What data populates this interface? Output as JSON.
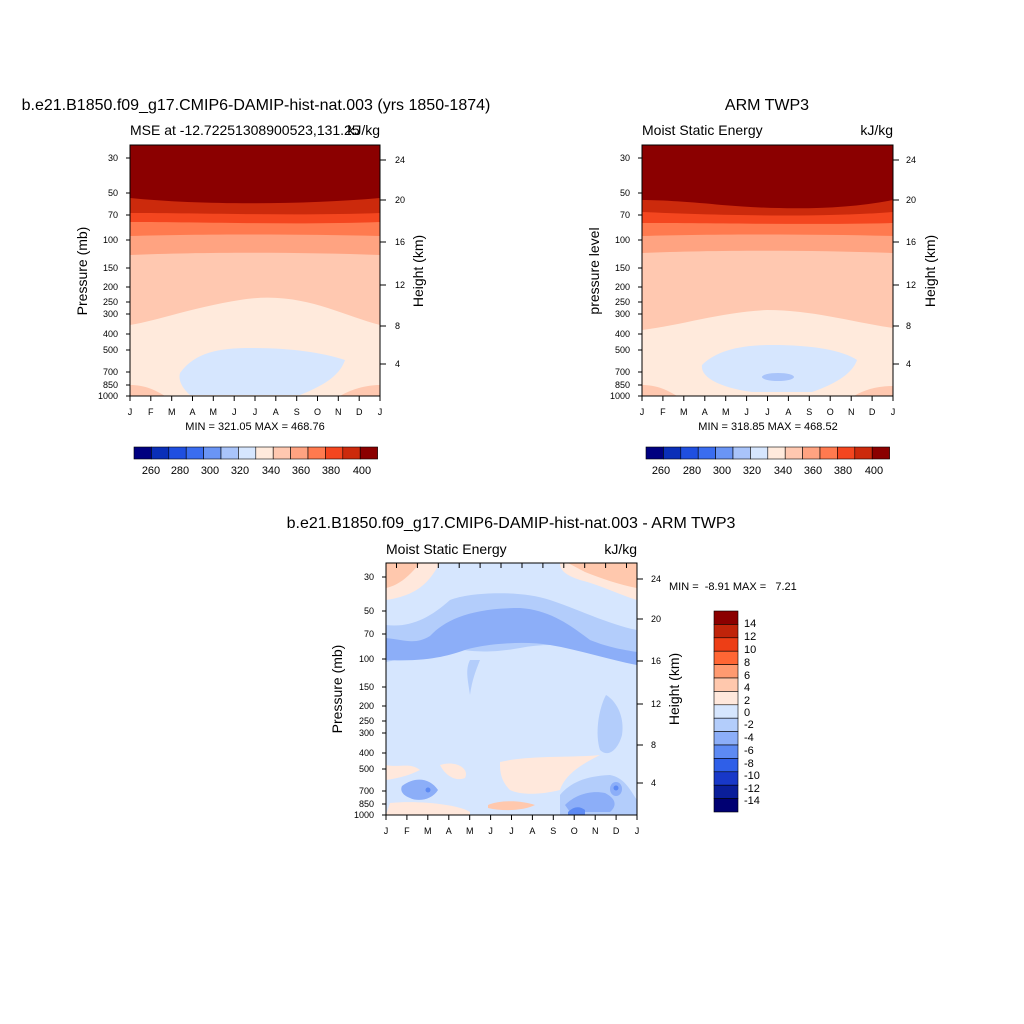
{
  "panels": [
    {
      "title": "b.e21.B1850.f09_g17.CMIP6-DAMIP-hist-nat.003 (yrs 1850-1874)",
      "subtitle_left": "MSE at -12.72251308900523,131.25",
      "subtitle_right": "kJ/kg",
      "ylabel": "Pressure (mb)",
      "y2label": "Height (km)",
      "stats": "MIN = 321.05 MAX = 468.76"
    },
    {
      "title": "ARM TWP3",
      "subtitle_left": "Moist Static Energy",
      "subtitle_right": "kJ/kg",
      "ylabel": "pressure level",
      "y2label": "Height (km)",
      "stats": "MIN = 318.85 MAX = 468.52"
    },
    {
      "title": "b.e21.B1850.f09_g17.CMIP6-DAMIP-hist-nat.003 - ARM TWP3",
      "subtitle_left": "Moist Static Energy",
      "subtitle_right": "kJ/kg",
      "ylabel": "Pressure (mb)",
      "y2label": "Height (km)",
      "stats": "MIN =  -8.91 MAX =   7.21"
    }
  ],
  "chart_data": [
    {
      "type": "heatmap",
      "title": "b.e21.B1850.f09_g17.CMIP6-DAMIP-hist-nat.003 (yrs 1850-1874)",
      "subtitle": "MSE at -12.72251308900523,131.25",
      "units": "kJ/kg",
      "xlabel": "",
      "ylabel": "Pressure (mb)",
      "y2label": "Height (km)",
      "x_ticks": [
        "J",
        "F",
        "M",
        "A",
        "M",
        "J",
        "J",
        "A",
        "S",
        "O",
        "N",
        "D",
        "J"
      ],
      "y_ticks": [
        30,
        50,
        70,
        100,
        150,
        200,
        250,
        300,
        400,
        500,
        700,
        850,
        1000
      ],
      "y2_ticks": [
        4,
        8,
        12,
        16,
        20,
        24
      ],
      "ylim": [
        1000,
        25
      ],
      "y_scale": "log",
      "colorbar_levels": [
        260,
        280,
        300,
        320,
        340,
        360,
        380,
        400
      ],
      "min": 321.05,
      "max": 468.76
    },
    {
      "type": "heatmap",
      "title": "ARM TWP3",
      "subtitle": "Moist Static Energy",
      "units": "kJ/kg",
      "xlabel": "",
      "ylabel": "pressure level",
      "y2label": "Height (km)",
      "x_ticks": [
        "J",
        "F",
        "M",
        "A",
        "M",
        "J",
        "J",
        "A",
        "S",
        "O",
        "N",
        "D",
        "J"
      ],
      "y_ticks": [
        30,
        50,
        70,
        100,
        150,
        200,
        250,
        300,
        400,
        500,
        700,
        850,
        1000
      ],
      "y2_ticks": [
        4,
        8,
        12,
        16,
        20,
        24
      ],
      "ylim": [
        1000,
        25
      ],
      "y_scale": "log",
      "colorbar_levels": [
        260,
        280,
        300,
        320,
        340,
        360,
        380,
        400
      ],
      "min": 318.85,
      "max": 468.52
    },
    {
      "type": "heatmap",
      "title": "b.e21.B1850.f09_g17.CMIP6-DAMIP-hist-nat.003 - ARM TWP3",
      "subtitle": "Moist Static Energy",
      "units": "kJ/kg",
      "xlabel": "",
      "ylabel": "Pressure (mb)",
      "y2label": "Height (km)",
      "x_ticks": [
        "J",
        "F",
        "M",
        "A",
        "M",
        "J",
        "J",
        "A",
        "S",
        "O",
        "N",
        "D",
        "J"
      ],
      "y_ticks": [
        30,
        50,
        70,
        100,
        150,
        200,
        250,
        300,
        400,
        500,
        700,
        850,
        1000
      ],
      "y2_ticks": [
        4,
        8,
        12,
        16,
        20,
        24
      ],
      "ylim": [
        1000,
        25
      ],
      "y_scale": "log",
      "colorbar_levels": [
        14,
        12,
        10,
        8,
        6,
        4,
        2,
        0,
        -2,
        -4,
        -6,
        -8,
        -10,
        -12,
        -14
      ],
      "min": -8.91,
      "max": 7.21
    }
  ],
  "colors": {
    "mse_scale": [
      "#000080",
      "#0a2fb8",
      "#1f4fe0",
      "#3a6df0",
      "#6a95f5",
      "#a9c4fa",
      "#d6e6fe",
      "#ffeadc",
      "#ffc8b0",
      "#ffa381",
      "#ff7a4f",
      "#f4461f",
      "#cc2a0c",
      "#8b0000"
    ],
    "diff_scale": [
      "#8b0000",
      "#c0240a",
      "#ed3e16",
      "#ff6634",
      "#ff9a70",
      "#ffc8ad",
      "#ffe8dc",
      "#d6e6fe",
      "#b3cdfb",
      "#8caef8",
      "#5d8af3",
      "#2f5fe8",
      "#1838c8",
      "#0a1e9a",
      "#000072"
    ]
  }
}
